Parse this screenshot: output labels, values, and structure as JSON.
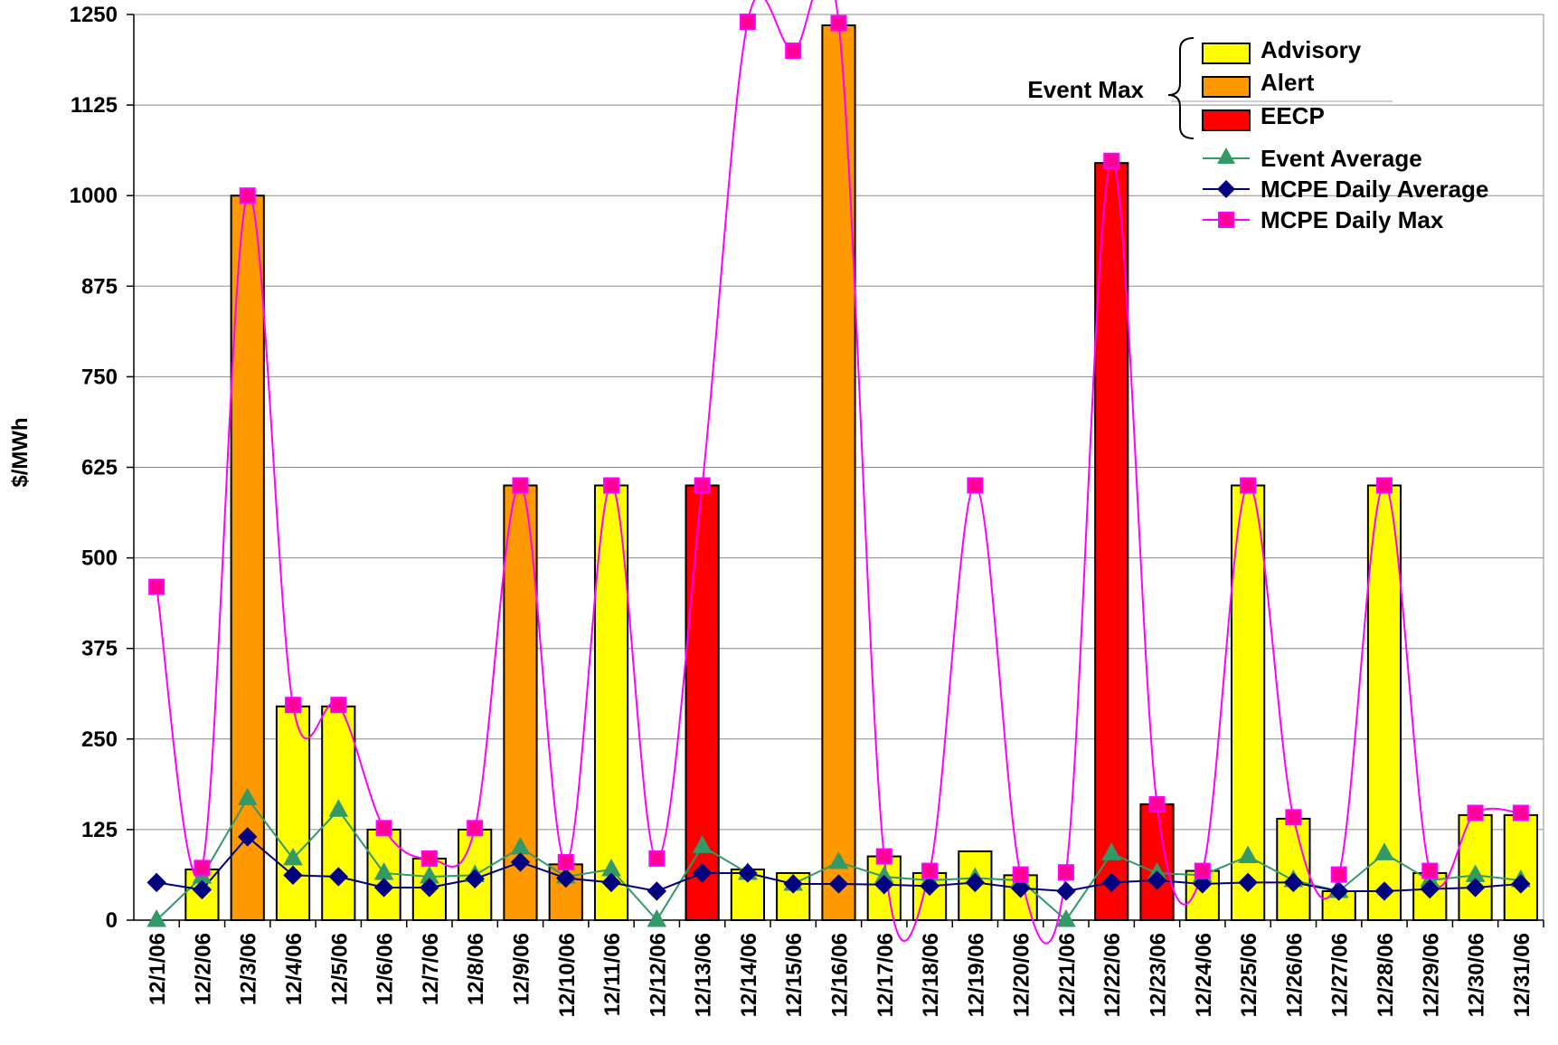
{
  "chart_data": {
    "type": "bar",
    "ylabel": "$/MWh",
    "ylim": [
      0,
      1250
    ],
    "yticks": [
      0,
      125,
      250,
      375,
      500,
      625,
      750,
      875,
      1000,
      1125,
      1250
    ],
    "grid": true,
    "legend_position": "top-right",
    "categories": [
      "12/1/06",
      "12/2/06",
      "12/3/06",
      "12/4/06",
      "12/5/06",
      "12/6/06",
      "12/7/06",
      "12/8/06",
      "12/9/06",
      "12/10/06",
      "12/11/06",
      "12/12/06",
      "12/13/06",
      "12/14/06",
      "12/15/06",
      "12/16/06",
      "12/17/06",
      "12/18/06",
      "12/19/06",
      "12/20/06",
      "12/21/06",
      "12/22/06",
      "12/23/06",
      "12/24/06",
      "12/25/06",
      "12/26/06",
      "12/27/06",
      "12/28/06",
      "12/29/06",
      "12/30/06",
      "12/31/06"
    ],
    "bar_label": "Event Max",
    "bar_levels": [
      {
        "key": "advisory",
        "name": "Advisory",
        "color": "#FFFF00"
      },
      {
        "key": "alert",
        "name": "Alert",
        "color": "#FF9900"
      },
      {
        "key": "eecp",
        "name": "EECP",
        "color": "#FF0000"
      }
    ],
    "bars": [
      null,
      {
        "value": 70,
        "level": "advisory"
      },
      {
        "value": 1000,
        "level": "alert"
      },
      {
        "value": 295,
        "level": "advisory"
      },
      {
        "value": 295,
        "level": "advisory"
      },
      {
        "value": 125,
        "level": "advisory"
      },
      {
        "value": 85,
        "level": "advisory"
      },
      {
        "value": 125,
        "level": "advisory"
      },
      {
        "value": 600,
        "level": "alert"
      },
      {
        "value": 77,
        "level": "alert"
      },
      {
        "value": 600,
        "level": "advisory"
      },
      null,
      {
        "value": 600,
        "level": "eecp"
      },
      {
        "value": 70,
        "level": "advisory"
      },
      {
        "value": 65,
        "level": "advisory"
      },
      {
        "value": 1235,
        "level": "alert"
      },
      {
        "value": 88,
        "level": "advisory"
      },
      {
        "value": 65,
        "level": "advisory"
      },
      {
        "value": 95,
        "level": "advisory"
      },
      {
        "value": 62,
        "level": "advisory"
      },
      null,
      {
        "value": 1045,
        "level": "eecp"
      },
      {
        "value": 160,
        "level": "eecp"
      },
      {
        "value": 68,
        "level": "advisory"
      },
      {
        "value": 600,
        "level": "advisory"
      },
      {
        "value": 140,
        "level": "advisory"
      },
      {
        "value": 40,
        "level": "advisory"
      },
      {
        "value": 600,
        "level": "advisory"
      },
      {
        "value": 65,
        "level": "advisory"
      },
      {
        "value": 145,
        "level": "advisory"
      },
      {
        "value": 145,
        "level": "advisory"
      }
    ],
    "series": [
      {
        "name": "Event Average",
        "color": "#339966",
        "marker": "triangle",
        "values": [
          0,
          60,
          168,
          85,
          152,
          65,
          60,
          62,
          100,
          60,
          70,
          0,
          102,
          65,
          50,
          80,
          60,
          55,
          58,
          55,
          0,
          92,
          65,
          62,
          88,
          55,
          40,
          92,
          55,
          62,
          55
        ]
      },
      {
        "name": "MCPE Daily Average",
        "color": "#000080",
        "marker": "diamond",
        "values": [
          52,
          42,
          115,
          62,
          60,
          45,
          45,
          57,
          80,
          58,
          52,
          40,
          65,
          65,
          50,
          50,
          49,
          47,
          52,
          44,
          40,
          52,
          55,
          50,
          52,
          52,
          40,
          40,
          43,
          45,
          50
        ]
      },
      {
        "name": "MCPE Daily Max",
        "color": "#FF00FF",
        "marker": "square",
        "marker_fill": "#FF0099",
        "smooth": true,
        "values": [
          460,
          72,
          1000,
          297,
          297,
          127,
          85,
          127,
          600,
          80,
          600,
          85,
          600,
          1240,
          1200,
          1238,
          88,
          68,
          600,
          63,
          66,
          1048,
          160,
          68,
          600,
          142,
          63,
          600,
          68,
          148,
          148
        ]
      }
    ]
  }
}
